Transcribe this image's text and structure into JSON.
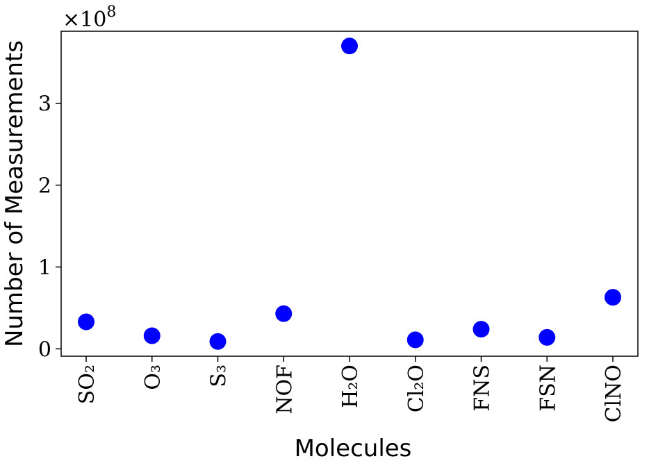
{
  "chart_data": {
    "type": "scatter",
    "x_label": "Molecules",
    "y_label": "Number of Measurements",
    "y_scale_base": "×10",
    "y_scale_exponent": "8",
    "categories": [
      "SO₂",
      "O₃",
      "S₃",
      "NOF",
      "H₂O",
      "Cl₂O",
      "FNS",
      "FSN",
      "ClNO"
    ],
    "values": [
      0.33,
      0.16,
      0.09,
      0.43,
      3.7,
      0.11,
      0.24,
      0.14,
      0.63
    ],
    "color": "#0000ff",
    "ylim": [
      -0.09,
      3.88
    ],
    "yticks": [
      0,
      1,
      2,
      3
    ],
    "grid": false
  }
}
